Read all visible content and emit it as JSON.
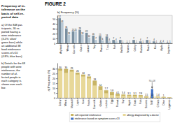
{
  "chart_data": [
    {
      "type": "bar",
      "title": "FIGURE 2",
      "y_label": "a) Frequency (%)",
      "categories": [
        "Celery",
        "Wheat",
        "Mustard",
        "Lupin",
        "Kiwi",
        "Peach",
        "Cow milk",
        "Gluten",
        "Lactose",
        "Egg",
        "Peanut",
        "Soy",
        "Apple",
        "T.nuts",
        "Fish",
        "Sesame",
        "Milk*",
        "O.fruits",
        "Other",
        "Legumes"
      ],
      "series": [
        {
          "name": "self-reported intolerance",
          "color": "#c8b464",
          "values": [
            30.0,
            29.8,
            29.0,
            26.0,
            24.0,
            22.0,
            17.7,
            12.0,
            7.74,
            5.8,
            4.1,
            3.4,
            3.1,
            3.1,
            2.8,
            1.5,
            1.5,
            1.4,
            1.0,
            0.5
          ],
          "value_labels": [
            "30",
            "30",
            "29",
            "26",
            "24",
            "22",
            "18",
            "12",
            "7.7",
            "5.8",
            "4.1",
            "3.4",
            "3.1",
            "3.1",
            "2.8",
            "1.5",
            "1.5",
            "1.4",
            "1",
            null
          ]
        },
        {
          "name": "allergy diagnosed by a doctor",
          "color": "#e8d898",
          "values": [
            28.0,
            25.8,
            27.0,
            24.0,
            22.0,
            20.0,
            12.7,
            8.0,
            4.74,
            2.8,
            2.1,
            2.1,
            2.0,
            1.5,
            1.4,
            0.5,
            0.2,
            1.0,
            0.5,
            0.3
          ]
        },
        {
          "name": "intolerance based on symptom score ≥13",
          "color": "#4472c4",
          "values": [
            0,
            0,
            0,
            0,
            0,
            0,
            0,
            0,
            0,
            0,
            0,
            0,
            0,
            0,
            0,
            0,
            9.0,
            0,
            0,
            0
          ]
        }
      ],
      "ylim": [
        0,
        36
      ],
      "yticks": [
        0,
        5,
        10,
        15,
        20,
        25,
        30
      ],
      "grid": false,
      "legend": "bottom",
      "data_labels": true,
      "annotations": [
        {
          "text": "Frequency of in-\ntolerance on the\nbasis of self-re-\nported data"
        },
        {
          "text": "a) Of the 848 par-\nticipants, 30 re-\nported having a\nwine intolerance\n(3.2%; olive/\ngreen bars) while\nan additional 38\nfood intolerance\nscores of ≥10\n(4.8%; blue bars)"
        },
        {
          "text": "b) Details for the 68\npeople with wine\nintolerance; the\nnumber of af-\nfected people in\neach category is\nshown over each\nbar."
        },
        {
          "text": "90+08",
          "x": "Milk*"
        }
      ]
    },
    {
      "type": "bar",
      "title": "b) Frequency (%)",
      "categories": [
        "Any food",
        "Wheat",
        "Cow milk",
        "Gluten",
        "Lactose",
        "Soy",
        "Peanut",
        "T.nut",
        "Fish",
        "Shellfish",
        "Sesame",
        "Celery",
        "Mustard",
        "Peach",
        "Kiwi",
        "Apple",
        "Legumes"
      ],
      "series": [
        {
          "color": "#7a8fa0",
          "values": [
            52,
            31,
            25,
            28,
            22,
            16,
            15,
            14,
            7,
            7,
            1,
            7,
            4,
            7,
            4,
            2,
            1
          ]
        },
        {
          "color": "#b8c8d4",
          "values": [
            43,
            18,
            25,
            18,
            12,
            7,
            6,
            4,
            4,
            1,
            1,
            1,
            1,
            1,
            1,
            2,
            1
          ]
        }
      ],
      "ylim": [
        0,
        58
      ],
      "yticks": [
        0,
        10,
        20,
        30,
        40,
        50
      ],
      "grid": false,
      "data_labels": true
    }
  ]
}
